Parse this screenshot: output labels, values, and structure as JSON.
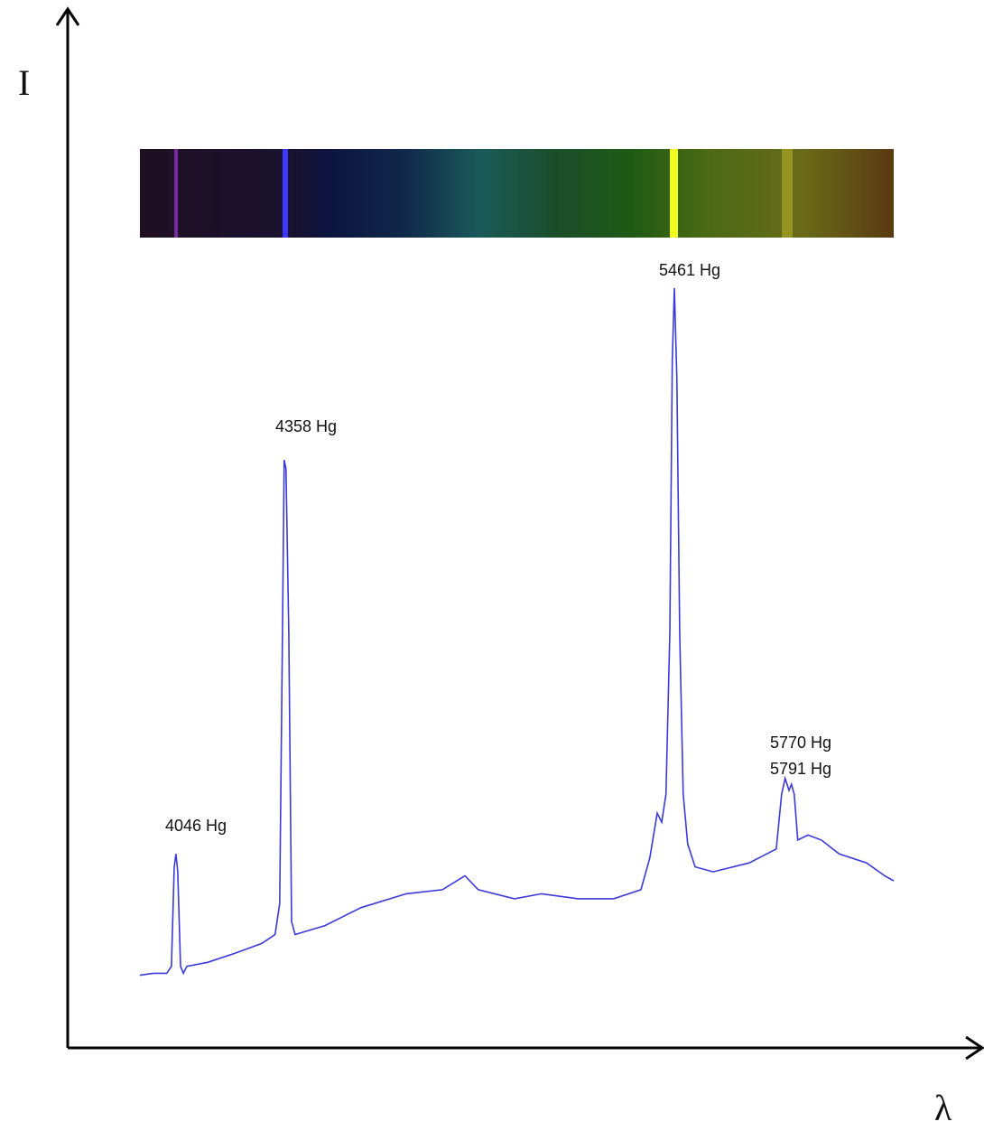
{
  "chart_data": {
    "type": "line",
    "x_label": "λ",
    "y_label": "I",
    "xlim": [
      3738,
      6332
    ],
    "ylim": [
      0,
      104
    ],
    "x": [
      3943,
      3982,
      4020,
      4033,
      4041,
      4046,
      4051,
      4059,
      4067,
      4077,
      4136,
      4213,
      4290,
      4328,
      4341,
      4349,
      4354,
      4359,
      4367,
      4375,
      4385,
      4470,
      4572,
      4701,
      4804,
      4868,
      4906,
      5009,
      5086,
      5189,
      5291,
      5369,
      5394,
      5415,
      5428,
      5440,
      5451,
      5458,
      5464,
      5471,
      5479,
      5489,
      5502,
      5523,
      5574,
      5677,
      5754,
      5769,
      5779,
      5790,
      5797,
      5805,
      5815,
      5844,
      5882,
      5933,
      6011,
      6062,
      6088
    ],
    "series": [
      {
        "color": "#3a3ad8",
        "values": [
          7.3,
          7.5,
          7.5,
          8.2,
          18.2,
          19.5,
          17.7,
          8.2,
          7.5,
          8.2,
          8.6,
          9.5,
          10.5,
          11.4,
          14.5,
          41.8,
          59.1,
          58.2,
          41.8,
          12.7,
          11.4,
          12.3,
          14.1,
          15.5,
          15.9,
          17.3,
          15.9,
          15,
          15.5,
          15,
          15,
          15.9,
          19.1,
          23.6,
          22.7,
          25.5,
          41.8,
          69.1,
          76.4,
          67.3,
          41.8,
          25.5,
          20.5,
          18.2,
          17.7,
          18.6,
          20,
          25.5,
          27.1,
          25.9,
          26.5,
          25.5,
          20.9,
          21.4,
          20.9,
          19.5,
          18.6,
          17.3,
          16.8
        ]
      }
    ],
    "annotations": [
      "4046 Hg",
      "4358 Hg",
      "5461 Hg",
      "5770 Hg",
      "5791 Hg"
    ]
  }
}
